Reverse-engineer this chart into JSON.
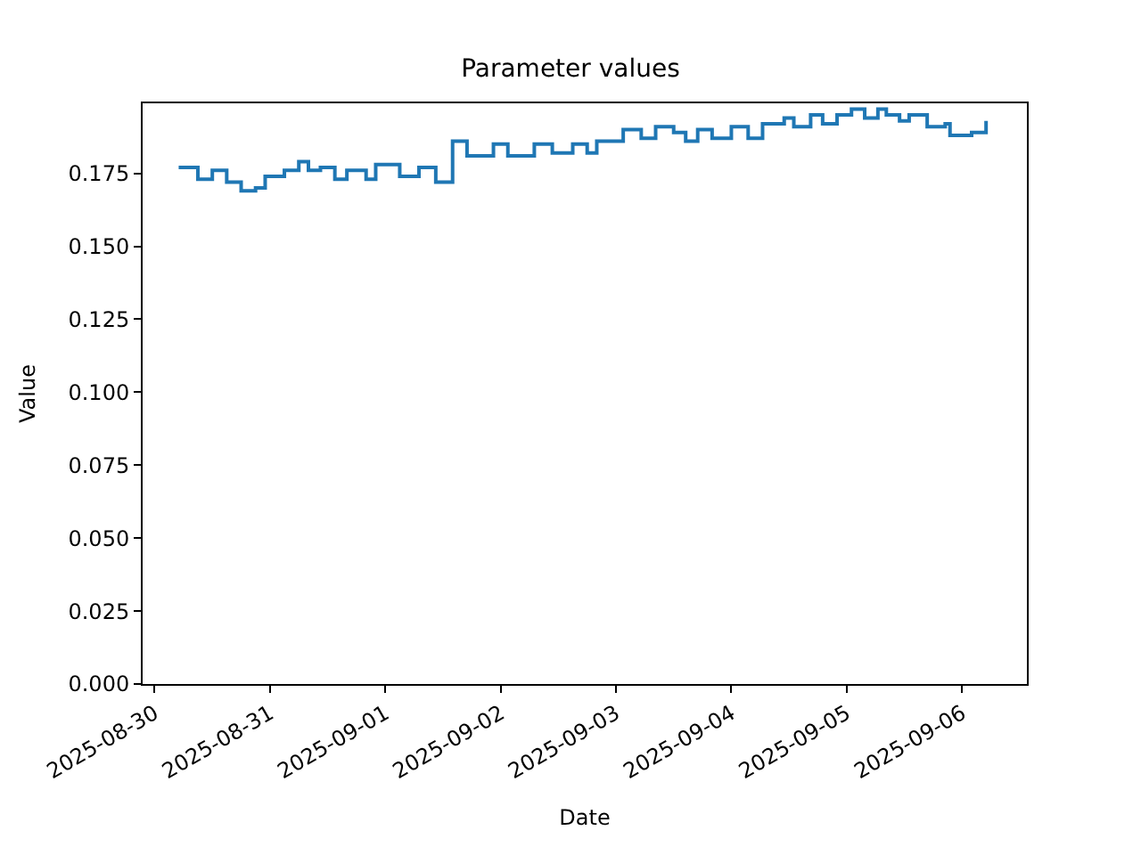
{
  "chart_data": {
    "type": "step",
    "title": "Parameter values",
    "xlabel": "Date",
    "ylabel": "Value",
    "x": [
      "2025-08-30T05:00",
      "2025-08-30T09:00",
      "2025-08-30T12:00",
      "2025-08-30T15:00",
      "2025-08-30T18:00",
      "2025-08-30T21:00",
      "2025-08-30T23:00",
      "2025-08-31T03:00",
      "2025-08-31T06:00",
      "2025-08-31T08:00",
      "2025-08-31T10:30",
      "2025-08-31T13:30",
      "2025-08-31T16:00",
      "2025-08-31T20:00",
      "2025-08-31T22:00",
      "2025-09-01T01:00",
      "2025-09-01T03:00",
      "2025-09-01T07:00",
      "2025-09-01T10:30",
      "2025-09-01T13:00",
      "2025-09-01T14:00",
      "2025-09-01T17:00",
      "2025-09-01T20:30",
      "2025-09-01T22:30",
      "2025-09-02T01:30",
      "2025-09-02T05:00",
      "2025-09-02T07:00",
      "2025-09-02T10:45",
      "2025-09-02T15:00",
      "2025-09-02T18:00",
      "2025-09-02T20:00",
      "2025-09-02T23:45",
      "2025-09-03T01:30",
      "2025-09-03T05:15",
      "2025-09-03T08:15",
      "2025-09-03T12:00",
      "2025-09-03T14:30",
      "2025-09-03T17:00",
      "2025-09-03T20:00",
      "2025-09-03T22:00",
      "2025-09-04T00:00",
      "2025-09-04T03:30",
      "2025-09-04T06:30",
      "2025-09-04T11:00",
      "2025-09-04T13:00",
      "2025-09-04T16:30",
      "2025-09-04T19:00",
      "2025-09-04T22:00",
      "2025-09-05T01:00",
      "2025-09-05T03:45",
      "2025-09-05T06:30",
      "2025-09-05T08:15",
      "2025-09-05T11:00",
      "2025-09-05T13:00",
      "2025-09-05T16:45",
      "2025-09-05T20:30",
      "2025-09-05T21:30",
      "2025-09-06T02:00",
      "2025-09-06T04:00",
      "2025-09-06T05:00"
    ],
    "series": [
      {
        "color": "#1f77b4",
        "values": [
          0.177,
          0.173,
          0.176,
          0.172,
          0.169,
          0.17,
          0.174,
          0.176,
          0.179,
          0.176,
          0.177,
          0.173,
          0.176,
          0.173,
          0.178,
          0.178,
          0.174,
          0.177,
          0.172,
          0.172,
          0.186,
          0.181,
          0.181,
          0.185,
          0.181,
          0.181,
          0.185,
          0.182,
          0.185,
          0.182,
          0.186,
          0.186,
          0.19,
          0.187,
          0.191,
          0.189,
          0.186,
          0.19,
          0.187,
          0.187,
          0.191,
          0.187,
          0.192,
          0.194,
          0.191,
          0.195,
          0.192,
          0.195,
          0.197,
          0.194,
          0.197,
          0.195,
          0.193,
          0.195,
          0.191,
          0.192,
          0.188,
          0.189,
          0.189,
          0.193
        ]
      }
    ],
    "xlim": [
      "2025-08-29T21:30",
      "2025-09-06T13:30"
    ],
    "xticks": [
      {
        "value": "2025-08-30",
        "label": "2025-08-30"
      },
      {
        "value": "2025-08-31",
        "label": "2025-08-31"
      },
      {
        "value": "2025-09-01",
        "label": "2025-09-01"
      },
      {
        "value": "2025-09-02",
        "label": "2025-09-02"
      },
      {
        "value": "2025-09-03",
        "label": "2025-09-03"
      },
      {
        "value": "2025-09-04",
        "label": "2025-09-04"
      },
      {
        "value": "2025-09-05",
        "label": "2025-09-05"
      },
      {
        "value": "2025-09-06",
        "label": "2025-09-06"
      }
    ],
    "ylim": [
      0,
      0.199
    ],
    "yticks": [
      {
        "value": 0,
        "label": "0.000"
      },
      {
        "value": 0.025,
        "label": "0.025"
      },
      {
        "value": 0.05,
        "label": "0.050"
      },
      {
        "value": 0.075,
        "label": "0.075"
      },
      {
        "value": 0.1,
        "label": "0.100"
      },
      {
        "value": 0.125,
        "label": "0.125"
      },
      {
        "value": 0.15,
        "label": "0.150"
      },
      {
        "value": 0.175,
        "label": "0.175"
      }
    ],
    "marker": "none",
    "line_style": "solid"
  }
}
